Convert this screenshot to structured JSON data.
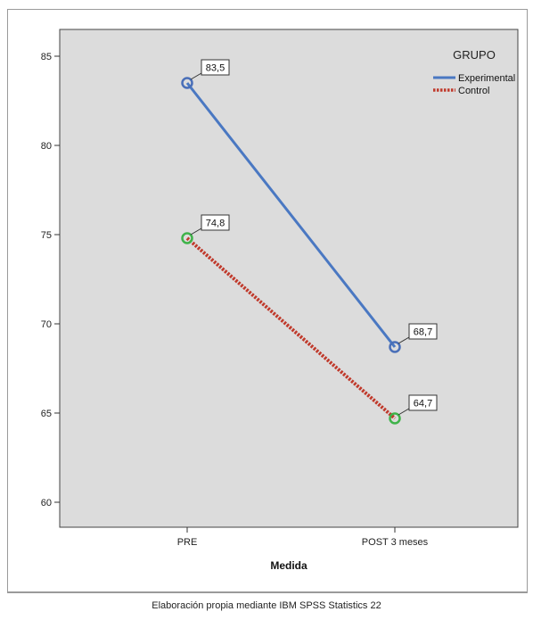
{
  "chart_data": {
    "type": "line",
    "categories": [
      "PRE",
      "POST 3 meses"
    ],
    "xlabel": "Medida",
    "ylabel": "",
    "ylim": [
      59,
      87
    ],
    "yticks": [
      60,
      65,
      70,
      75,
      80,
      85
    ],
    "grid": false,
    "legend": {
      "title": "GRUPO",
      "placement": "top-right"
    },
    "series": [
      {
        "name": "Experimental",
        "values": [
          83.5,
          68.7
        ],
        "labels": [
          "83,5",
          "68,7"
        ],
        "color": "#4a78c2",
        "marker_color": "#4a6fb8",
        "style": "solid"
      },
      {
        "name": "Control",
        "values": [
          74.8,
          64.7
        ],
        "labels": [
          "74,8",
          "64,7"
        ],
        "color": "#c0392b",
        "marker_color": "#3fb34a",
        "style": "dotted"
      }
    ],
    "plot_bg": "#dcdcdc"
  },
  "caption": "Elaboración propia mediante IBM SPSS Statistics 22"
}
